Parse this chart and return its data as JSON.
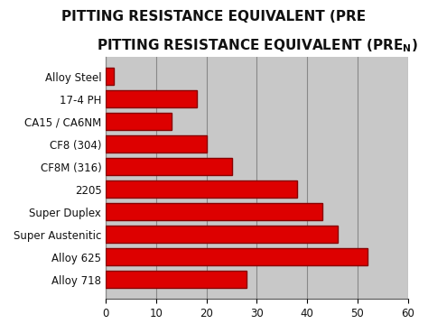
{
  "title_main": "PITTING RESISTANCE EQUIVALENT (PRE",
  "title_sub": "N",
  "categories": [
    "Alloy Steel",
    "17-4 PH",
    "CA15 / CA6NM",
    "CF8 (304)",
    "CF8M (316)",
    "2205",
    "Super Duplex",
    "Super Austenitic",
    "Alloy 625",
    "Alloy 718"
  ],
  "values": [
    1.5,
    18,
    13,
    20,
    25,
    38,
    43,
    46,
    52,
    28
  ],
  "bar_color": "#dd0000",
  "bar_edge_color": "#880000",
  "plot_bg_color": "#c8c8c8",
  "fig_bg_color": "#ffffff",
  "grid_color": "#888888",
  "xlim": [
    0,
    60
  ],
  "xticks": [
    0,
    10,
    20,
    30,
    40,
    50,
    60
  ],
  "label_fontsize": 8.5,
  "tick_fontsize": 8.5,
  "title_fontsize": 11,
  "bar_height": 0.75
}
